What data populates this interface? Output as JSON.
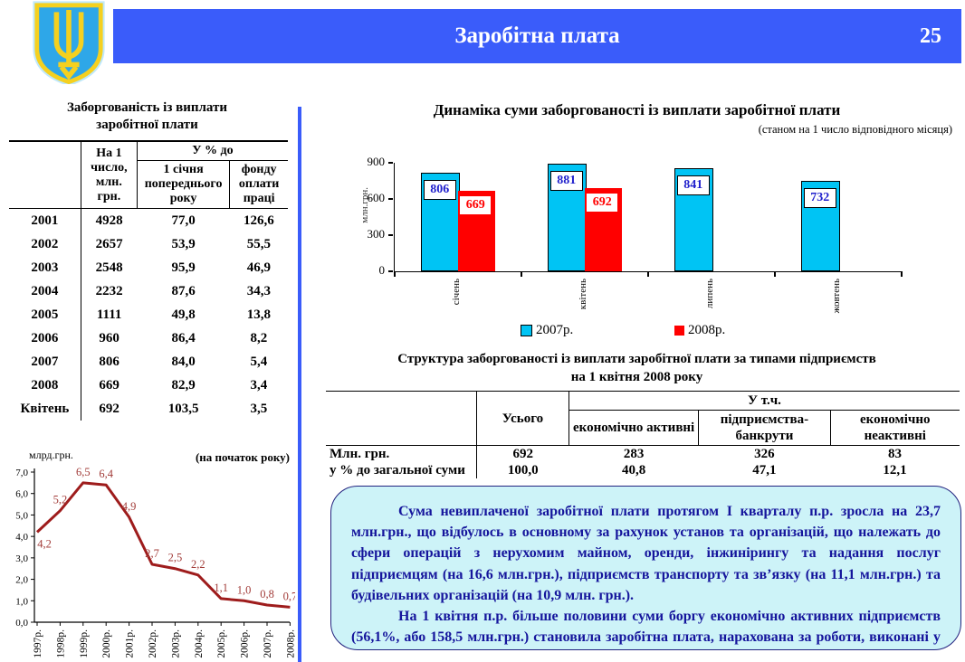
{
  "header": {
    "title": "Заробітна плата",
    "page_number": "25",
    "emblem": "ukraine-trident-coat-of-arms",
    "bar_color": "#3a5cfa"
  },
  "debt_table": {
    "title_line1": "Заборгованість із виплати",
    "title_line2": "заробітної плати",
    "col_amount_header": "На 1 число, млн. грн.",
    "pct_group_header": "У % до",
    "pct_col1_header": "1 січня попереднього року",
    "pct_col2_header": "фонду оплати праці",
    "rows": [
      {
        "period": "2001",
        "amount": "4928",
        "pct_prev": "77,0",
        "pct_fund": "126,6"
      },
      {
        "period": "2002",
        "amount": "2657",
        "pct_prev": "53,9",
        "pct_fund": "55,5"
      },
      {
        "period": "2003",
        "amount": "2548",
        "pct_prev": "95,9",
        "pct_fund": "46,9"
      },
      {
        "period": "2004",
        "amount": "2232",
        "pct_prev": "87,6",
        "pct_fund": "34,3"
      },
      {
        "period": "2005",
        "amount": "1111",
        "pct_prev": "49,8",
        "pct_fund": "13,8"
      },
      {
        "period": "2006",
        "amount": "960",
        "pct_prev": "86,4",
        "pct_fund": "8,2"
      },
      {
        "period": "2007",
        "amount": "806",
        "pct_prev": "84,0",
        "pct_fund": "5,4"
      },
      {
        "period": "2008",
        "amount": "669",
        "pct_prev": "82,9",
        "pct_fund": "3,4"
      },
      {
        "period": "Квітень",
        "amount": "692",
        "pct_prev": "103,5",
        "pct_fund": "3,5"
      }
    ]
  },
  "chart_data": [
    {
      "type": "bar",
      "title": "Динаміка суми заборгованості із виплати заробітної плати",
      "subtitle": "(станом на 1 число відповідного місяця)",
      "ylabel": "млн.грн.",
      "ylim": [
        0,
        900
      ],
      "yticks": [
        0,
        300,
        600,
        900
      ],
      "grid": false,
      "legend_position": "bottom",
      "categories": [
        "січень",
        "квітень",
        "липень",
        "жовтень"
      ],
      "series": [
        {
          "name": "2007р.",
          "color": "#00c4f4",
          "label_color": "#1f1fcc",
          "values": [
            806,
            881,
            841,
            732
          ]
        },
        {
          "name": "2008р.",
          "color": "#ff0000",
          "label_color": "#ff0000",
          "values": [
            669,
            692,
            null,
            null
          ]
        }
      ]
    },
    {
      "type": "line",
      "title": "",
      "ylabel": "млрд.грн.",
      "annotation": "(на початок року)",
      "ylim": [
        0,
        7
      ],
      "ytick_labels": [
        "0,0",
        "1,0",
        "2,0",
        "3,0",
        "4,0",
        "5,0",
        "6,0",
        "7,0"
      ],
      "x": [
        "1997р.",
        "1998р.",
        "1999р.",
        "2000р.",
        "2001р.",
        "2002р.",
        "2003р.",
        "2004р.",
        "2005р.",
        "2006р.",
        "2007р.",
        "2008р."
      ],
      "values": [
        4.2,
        5.2,
        6.5,
        6.4,
        4.9,
        2.7,
        2.5,
        2.2,
        1.1,
        1.0,
        0.8,
        0.7
      ],
      "value_labels": [
        "4,2",
        "5,2",
        "6,5",
        "6,4",
        "4,9",
        "2,7",
        "2,5",
        "2,2",
        "1,1",
        "1,0",
        "0,8",
        "0,7"
      ],
      "line_color": "#9e1c1c",
      "label_color": "#a23c39",
      "grid": false
    }
  ],
  "structure_table": {
    "title_line1": "Структура заборгованості із виплати заробітної плати за типами підприємств",
    "title_line2": "на 1 квітня 2008 року",
    "total_header": "Усього",
    "incl_group_header": "У т.ч.",
    "sub_header1": "економічно активні",
    "sub_header2": "підприємства-банкрути",
    "sub_header3": "економічно неактивні",
    "rows": [
      {
        "label": "Млн. грн.",
        "values": [
          "692",
          "283",
          "326",
          "83"
        ]
      },
      {
        "label": "у % до загальної суми",
        "values": [
          "100,0",
          "40,8",
          "47,1",
          "12,1"
        ]
      }
    ]
  },
  "note_box": {
    "paragraph1": "Сума невиплаченої заробітної плати протягом І кварталу п.р. зросла на 23,7 млн.грн., що відбулось в основному за рахунок установ та організацій, що належать до сфери операцій з нерухомим майном, оренди, інжинірингу та надання послуг підприємцям (на 16,6 млн.грн.), підприємств транспорту та зв’язку  (на 11,1 млн.грн.) та будівельних організацій (на 10,9 млн. грн.).",
    "paragraph2": "На 1 квітня п.р. більше половини суми боргу економічно активних підприємств (56,1%, або 158,5 млн.грн.) становила заробітна плата, нарахована за роботи, виконані у січні–лютому п.р.",
    "background": "#cdf3f8",
    "text_color": "#15159c"
  }
}
